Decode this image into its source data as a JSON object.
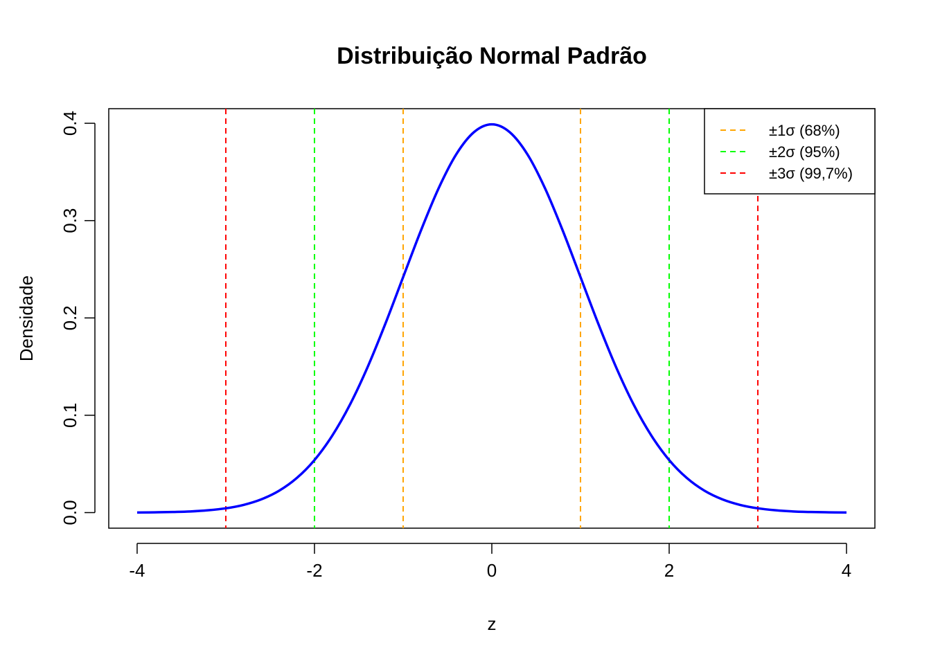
{
  "chart_data": {
    "type": "line",
    "title": "Distribuição Normal Padrão",
    "x_label": "z",
    "y_label": "Densidade",
    "x": [
      -4,
      -3.8,
      -3.6,
      -3.4,
      -3.2,
      -3,
      -2.8,
      -2.6,
      -2.4,
      -2.2,
      -2,
      -1.8,
      -1.6,
      -1.4,
      -1.2,
      -1,
      -0.8,
      -0.6,
      -0.4,
      -0.2,
      0,
      0.2,
      0.4,
      0.6,
      0.8,
      1,
      1.2,
      1.4,
      1.6,
      1.8,
      2,
      2.2,
      2.4,
      2.6,
      2.8,
      3,
      3.2,
      3.4,
      3.6,
      3.8,
      4
    ],
    "values": [
      0.0001,
      0.0003,
      0.0006,
      0.0012,
      0.0024,
      0.0044,
      0.0079,
      0.0136,
      0.0224,
      0.0355,
      0.054,
      0.079,
      0.1109,
      0.1497,
      0.1942,
      0.242,
      0.2897,
      0.3332,
      0.3683,
      0.391,
      0.3989,
      0.391,
      0.3683,
      0.3332,
      0.2897,
      0.242,
      0.1942,
      0.1497,
      0.1109,
      0.079,
      0.054,
      0.0355,
      0.0224,
      0.0136,
      0.0079,
      0.0044,
      0.0024,
      0.0012,
      0.0006,
      0.0003,
      0.0001
    ],
    "color": "#0000ff",
    "vlines": [
      {
        "name": "±1σ (68%)",
        "color": "#ffa500",
        "x": [
          -1,
          1
        ]
      },
      {
        "name": "±2σ (95%)",
        "color": "#00ff00",
        "x": [
          -2,
          2
        ]
      },
      {
        "name": "±3σ (99,7%)",
        "color": "#ff0000",
        "x": [
          -3,
          3
        ]
      }
    ],
    "xlim": [
      -4.32,
      4.32
    ],
    "ylim": [
      -0.016,
      0.415
    ],
    "xticks": [
      -4,
      -2,
      0,
      2,
      4
    ],
    "yticks": [
      {
        "value": 0,
        "label": "0.0"
      },
      0.1,
      0.2,
      0.3,
      0.4
    ],
    "legend": "top-right"
  }
}
